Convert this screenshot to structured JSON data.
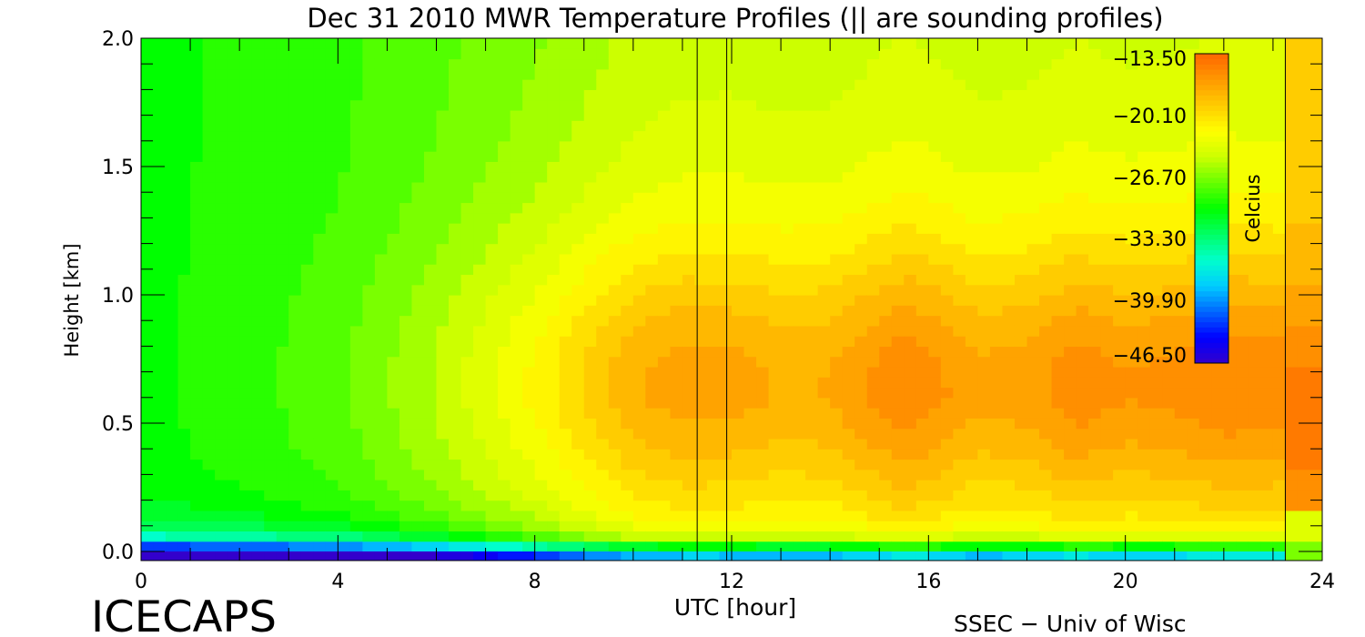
{
  "chart_data": {
    "type": "heatmap",
    "title": "Dec 31 2010 MWR Temperature Profiles (|| are sounding profiles)",
    "xlabel": "UTC [hour]",
    "ylabel": "Height [km]",
    "xlim": [
      0,
      24
    ],
    "ylim": [
      0,
      2.0
    ],
    "x_ticks": [
      0,
      4,
      8,
      12,
      16,
      20,
      24
    ],
    "x_tick_labels": [
      "0",
      "4",
      "8",
      "12",
      "16",
      "20",
      "24"
    ],
    "y_ticks": [
      0,
      0.5,
      1.0,
      1.5,
      2.0
    ],
    "y_tick_labels": [
      "0.0",
      "0.5",
      "1.0",
      "1.5",
      "2.0"
    ],
    "colorbar": {
      "label": "Celcius",
      "min": -50.0,
      "max": -13.5,
      "tick_values": [
        -13.5,
        -20.1,
        -26.7,
        -33.3,
        -39.9,
        -46.5
      ],
      "tick_labels": [
        "−13.50",
        "−20.10",
        "−26.70",
        "−33.30",
        "−39.90",
        "−46.50"
      ],
      "colors": [
        "#3300cc",
        "#0000ff",
        "#0066ff",
        "#00ccff",
        "#00ffcc",
        "#00ff66",
        "#00ff00",
        "#66ff00",
        "#ccff00",
        "#ffff00",
        "#ffcc00",
        "#ff9900",
        "#ff6600"
      ]
    },
    "sounding_profiles_utc": [
      11.3,
      11.9
    ],
    "field": {
      "x": [
        0,
        1,
        2,
        3,
        4,
        5,
        6,
        7,
        8,
        9,
        9.5,
        10,
        10.5,
        11,
        11.3,
        12,
        12.5,
        13,
        14,
        15,
        15.5,
        16,
        17,
        18,
        18.8,
        19.5,
        20,
        21,
        22,
        23,
        23.25,
        24
      ],
      "y": [
        0,
        0.03,
        0.08,
        0.15,
        0.25,
        0.4,
        0.5,
        0.6,
        0.7,
        0.8,
        0.9,
        1.0,
        1.2,
        1.4,
        1.6,
        1.8,
        2.0
      ],
      "missing_after": 23.25
    }
  },
  "footer": {
    "left_label": "ICECAPS",
    "right_label": "SSEC − Univ of Wisc"
  }
}
